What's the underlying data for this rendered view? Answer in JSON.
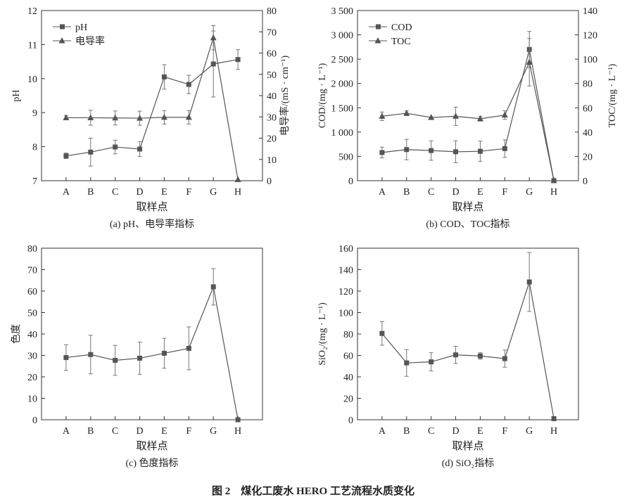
{
  "figure_title": "图 2　煤化工废水 HERO 工艺流程水质变化",
  "chart_data": [
    {
      "type": "line",
      "caption": "(a) pH、电导率指标",
      "xlabel": "取样点",
      "ylabel": "pH",
      "y2label": "电导率/(mS · cm⁻¹)",
      "categories": [
        "A",
        "B",
        "C",
        "D",
        "E",
        "F",
        "G",
        "H"
      ],
      "ylim": [
        7,
        12
      ],
      "yticks": [
        7,
        8,
        9,
        10,
        11,
        12
      ],
      "y2lim": [
        0,
        80
      ],
      "y2ticks": [
        0,
        10,
        20,
        30,
        40,
        50,
        60,
        70,
        80
      ],
      "legend": "top-left",
      "series": [
        {
          "name": "pH",
          "axis": "left",
          "marker": "square",
          "values": [
            7.73,
            7.84,
            7.99,
            7.93,
            10.05,
            9.83,
            10.43,
            10.56
          ],
          "errors": [
            0.08,
            0.41,
            0.2,
            0.22,
            0.36,
            0.27,
            0.97,
            0.29
          ]
        },
        {
          "name": "电导率",
          "axis": "right",
          "marker": "triangle",
          "values": [
            29.6,
            29.6,
            29.5,
            29.4,
            29.8,
            29.8,
            67.2,
            0.5
          ],
          "errors": [
            1,
            3.5,
            3.3,
            3.3,
            3.2,
            3.2,
            5.7,
            0
          ]
        }
      ]
    },
    {
      "type": "line",
      "caption": "(b) COD、TOC指标",
      "xlabel": "取样点",
      "ylabel": "COD/(mg · L⁻¹)",
      "y2label": "TOC/(mg · L⁻¹)",
      "categories": [
        "A",
        "B",
        "C",
        "D",
        "E",
        "F",
        "G",
        "H"
      ],
      "ylim": [
        0,
        3500
      ],
      "yticks": [
        0,
        500,
        1000,
        1500,
        2000,
        2500,
        3000,
        3500
      ],
      "yticklabels": [
        "0",
        "500",
        "1 000",
        "1 500",
        "2 000",
        "2 500",
        "3 000",
        "3 500"
      ],
      "y2lim": [
        0,
        140
      ],
      "y2ticks": [
        0,
        20,
        40,
        60,
        80,
        100,
        120,
        140
      ],
      "legend": "top-left",
      "series": [
        {
          "name": "COD",
          "axis": "left",
          "marker": "square",
          "values": [
            580,
            640,
            620,
            595,
            605,
            660,
            2700,
            0
          ],
          "errors": [
            110,
            210,
            200,
            225,
            210,
            180,
            370,
            0
          ]
        },
        {
          "name": "TOC",
          "axis": "right",
          "marker": "triangle",
          "values": [
            53,
            55.5,
            52,
            53,
            51,
            54,
            97.5,
            0
          ],
          "errors": [
            3.5,
            2,
            0.5,
            7.5,
            2,
            3.5,
            19.5,
            0
          ]
        }
      ]
    },
    {
      "type": "line",
      "caption": "(c) 色度指标",
      "xlabel": "取样点",
      "ylabel": "色度",
      "categories": [
        "A",
        "B",
        "C",
        "D",
        "E",
        "F",
        "G",
        "H"
      ],
      "ylim": [
        0,
        80
      ],
      "yticks": [
        0,
        10,
        20,
        30,
        40,
        50,
        60,
        70,
        80
      ],
      "series": [
        {
          "name": "色度",
          "axis": "left",
          "marker": "square",
          "values": [
            29,
            30.4,
            27.7,
            28.7,
            31,
            33.3,
            62,
            0
          ],
          "errors": [
            6,
            9,
            7,
            7.5,
            7,
            10,
            8.5,
            0
          ]
        }
      ]
    },
    {
      "type": "line",
      "caption": "(d) SiO₂指标",
      "xlabel": "取样点",
      "ylabel": "SiO₂/(mg · L⁻¹)",
      "categories": [
        "A",
        "B",
        "C",
        "D",
        "E",
        "F",
        "G",
        "H"
      ],
      "ylim": [
        0,
        160
      ],
      "yticks": [
        0,
        20,
        40,
        60,
        80,
        100,
        120,
        140,
        160
      ],
      "series": [
        {
          "name": "SiO₂",
          "axis": "left",
          "marker": "square",
          "values": [
            80.5,
            53,
            54,
            60.5,
            59.5,
            57,
            128.5,
            1
          ],
          "errors": [
            11,
            12.5,
            8.5,
            8,
            3,
            8,
            27.5,
            0
          ]
        }
      ]
    }
  ]
}
